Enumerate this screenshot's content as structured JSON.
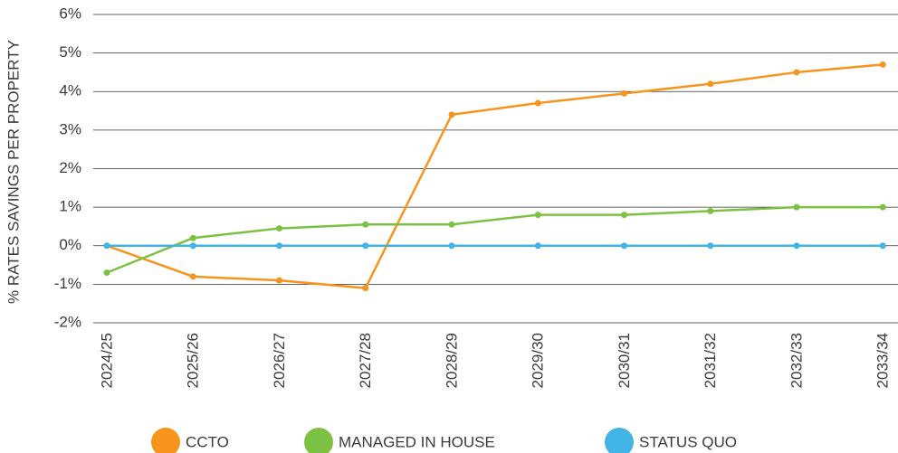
{
  "chart_data": {
    "type": "line",
    "y_label": "% RATES SAVINGS PER PROPERTY",
    "categories": [
      "2024/25",
      "2025/26",
      "2026/27",
      "2027/28",
      "2028/29",
      "2029/30",
      "2030/31",
      "2031/32",
      "2032/33",
      "2033/34"
    ],
    "series": [
      {
        "name": "CCTO",
        "color": "#f7941d",
        "values": [
          0,
          -0.8,
          -0.9,
          -1.1,
          3.4,
          3.7,
          3.95,
          4.2,
          4.5,
          4.7
        ]
      },
      {
        "name": "MANAGED IN HOUSE",
        "color": "#7dc142",
        "values": [
          -0.7,
          0.2,
          0.45,
          0.55,
          0.55,
          0.8,
          0.8,
          0.9,
          1.0,
          1.0
        ]
      },
      {
        "name": "STATUS QUO",
        "color": "#41b4e5",
        "values": [
          0,
          0,
          0,
          0,
          0,
          0,
          0,
          0,
          0,
          0
        ]
      }
    ],
    "ylim": [
      -2,
      6
    ],
    "yticks": [
      {
        "value": -2,
        "label": "-2%"
      },
      {
        "value": -1,
        "label": "-1%"
      },
      {
        "value": 0,
        "label": "0%"
      },
      {
        "value": 1,
        "label": "1%"
      },
      {
        "value": 2,
        "label": "2%"
      },
      {
        "value": 3,
        "label": "3%"
      },
      {
        "value": 4,
        "label": "4%"
      },
      {
        "value": 5,
        "label": "5%"
      },
      {
        "value": 6,
        "label": "6%"
      }
    ],
    "grid": true,
    "legend": "bottom"
  }
}
